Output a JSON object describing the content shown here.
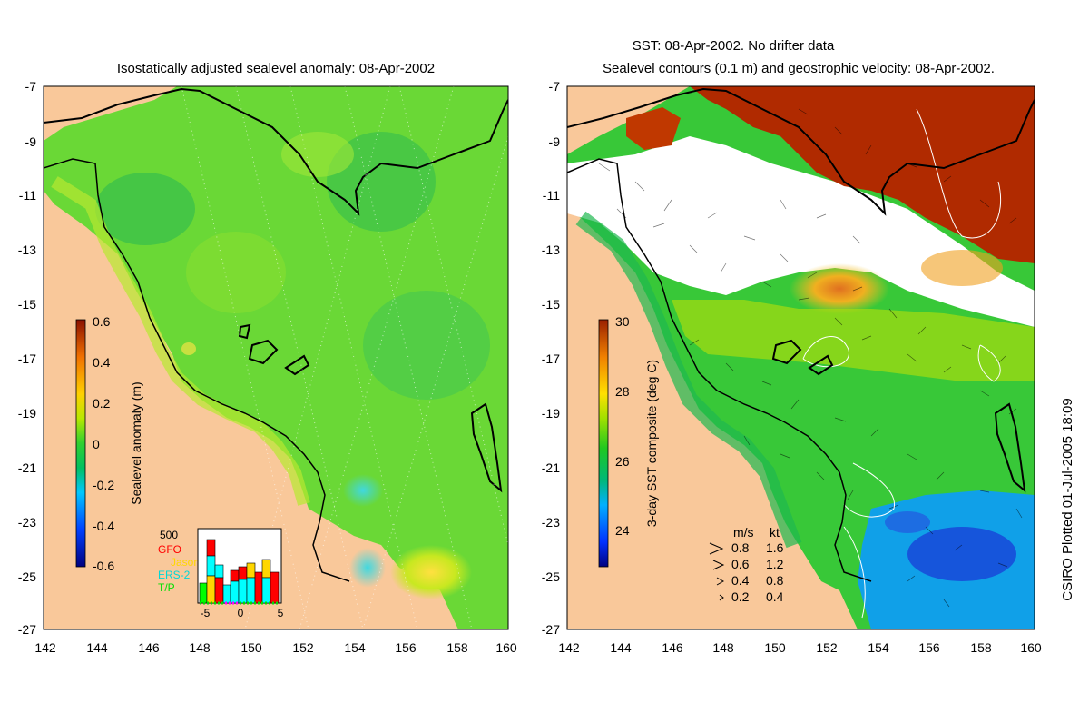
{
  "left_panel": {
    "title": "Isostatically adjusted sealevel anomaly: 08-Apr-2002",
    "x_ticks": [
      "142",
      "144",
      "146",
      "148",
      "150",
      "152",
      "154",
      "156",
      "158",
      "160"
    ],
    "y_ticks": [
      "-7",
      "-9",
      "-11",
      "-13",
      "-15",
      "-17",
      "-19",
      "-21",
      "-23",
      "-25",
      "-27"
    ],
    "colorbar": {
      "label": "Sealevel anomaly (m)",
      "ticks": [
        "0.6",
        "0.4",
        "0.2",
        "0",
        "-0.2",
        "-0.4",
        "-0.6"
      ]
    },
    "histogram": {
      "top_label": "500",
      "x_ticks": [
        "-5",
        "0",
        "5"
      ],
      "legend": [
        {
          "name": "GFO",
          "color": "#ff0000"
        },
        {
          "name": "Jason",
          "color": "#ffd700"
        },
        {
          "name": "ERS-2",
          "color": "#00ffff"
        },
        {
          "name": "T/P",
          "color": "#00ff00"
        }
      ]
    }
  },
  "right_panel": {
    "title_line1": "SST: 08-Apr-2002. No drifter data",
    "title_line2": "Sealevel contours (0.1 m) and geostrophic velocity: 08-Apr-2002.",
    "x_ticks": [
      "142",
      "144",
      "146",
      "148",
      "150",
      "152",
      "154",
      "156",
      "158",
      "160"
    ],
    "y_ticks": [
      "-7",
      "-9",
      "-11",
      "-13",
      "-15",
      "-17",
      "-19",
      "-21",
      "-23",
      "-25",
      "-27"
    ],
    "colorbar": {
      "label": "3-day SST composite (deg C)",
      "ticks": [
        "30",
        "28",
        "26",
        "24"
      ]
    },
    "velocity_legend": {
      "header_ms": "m/s",
      "header_kt": "kt",
      "rows": [
        {
          "ms": "0.8",
          "kt": "1.6"
        },
        {
          "ms": "0.6",
          "kt": "1.2"
        },
        {
          "ms": "0.4",
          "kt": "0.8"
        },
        {
          "ms": "0.2",
          "kt": "0.4"
        }
      ]
    }
  },
  "footer": {
    "credit": "CSIRO Plotted 01-Jul-2005 18:09"
  },
  "colors": {
    "land": "#f9c89a",
    "ocean_green": "#5fd33c",
    "sst_red": "#b52d00",
    "sst_orange": "#e8941c",
    "sst_blue": "#1860e0"
  }
}
